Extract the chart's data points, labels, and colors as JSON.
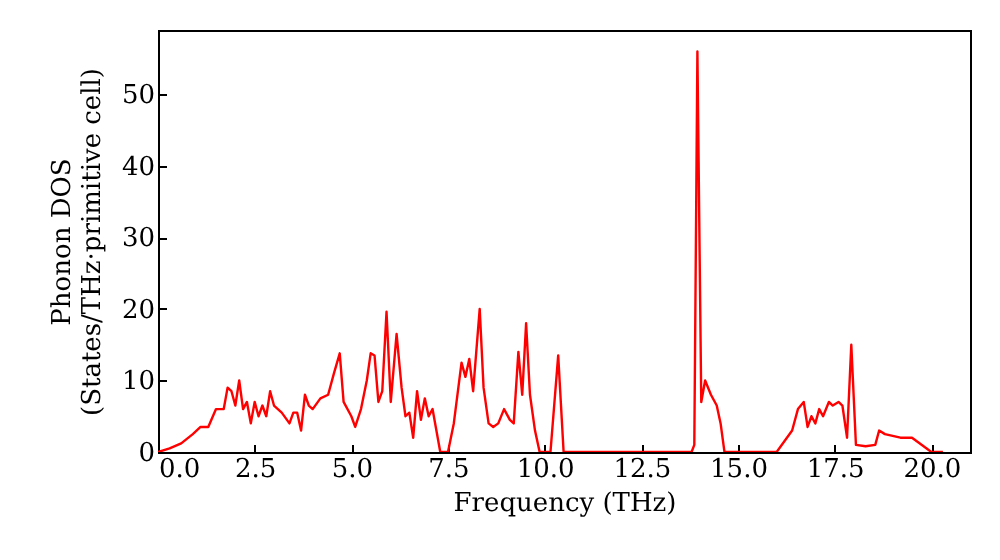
{
  "chart_data": {
    "type": "line",
    "xlabel": "Frequency (THz)",
    "ylabel": "Phonon DOS\n(States/THz·primitive cell)",
    "xlim": [
      0,
      21
    ],
    "ylim": [
      0,
      59
    ],
    "xticks": [
      {
        "value": 0,
        "label": "0.0"
      },
      {
        "value": 2.5,
        "label": "2.5"
      },
      {
        "value": 5,
        "label": "5.0"
      },
      {
        "value": 7.5,
        "label": "7.5"
      },
      {
        "value": 10,
        "label": "10.0"
      },
      {
        "value": 12.5,
        "label": "12.5"
      },
      {
        "value": 15,
        "label": "15.0"
      },
      {
        "value": 17.5,
        "label": "17.5"
      },
      {
        "value": 20,
        "label": "20.0"
      }
    ],
    "yticks": [
      0,
      10,
      20,
      30,
      40,
      50
    ],
    "series": [
      {
        "color": "#ff0000",
        "x": [
          0,
          0.3,
          0.6,
          0.9,
          1.1,
          1.3,
          1.5,
          1.7,
          1.8,
          1.9,
          2.0,
          2.1,
          2.2,
          2.3,
          2.4,
          2.5,
          2.6,
          2.7,
          2.8,
          2.9,
          3.0,
          3.1,
          3.2,
          3.4,
          3.5,
          3.6,
          3.7,
          3.8,
          3.9,
          4.0,
          4.2,
          4.4,
          4.55,
          4.7,
          4.8,
          5.0,
          5.1,
          5.25,
          5.4,
          5.5,
          5.6,
          5.7,
          5.8,
          5.91,
          6.02,
          6.17,
          6.3,
          6.4,
          6.5,
          6.6,
          6.7,
          6.8,
          6.9,
          7.0,
          7.1,
          7.2,
          7.3,
          7.5,
          7.65,
          7.85,
          7.95,
          8.05,
          8.15,
          8.32,
          8.42,
          8.55,
          8.67,
          8.8,
          8.95,
          9.1,
          9.2,
          9.32,
          9.42,
          9.52,
          9.62,
          9.75,
          9.87,
          10.15,
          10.35,
          10.49,
          13.8,
          13.87,
          13.95,
          14.05,
          14.15,
          14.3,
          14.45,
          14.55,
          14.65,
          16.0,
          16.4,
          16.55,
          16.7,
          16.8,
          16.9,
          17.0,
          17.1,
          17.2,
          17.35,
          17.45,
          17.6,
          17.7,
          17.82,
          17.93,
          18.05,
          18.3,
          18.55,
          18.65,
          18.8,
          19.2,
          19.5,
          19.8,
          20.0,
          20.3
        ],
        "values": [
          0,
          0.5,
          1.2,
          2.5,
          3.5,
          3.5,
          6,
          6,
          9,
          8.5,
          6.5,
          10,
          6,
          7,
          4,
          7,
          5,
          6.5,
          5,
          8.5,
          6.5,
          6,
          5.5,
          4,
          5.5,
          5.5,
          3,
          8,
          6.5,
          6,
          7.5,
          8,
          11,
          13.8,
          7,
          5,
          3.5,
          6,
          10,
          13.8,
          13.5,
          7,
          8.5,
          19.6,
          7,
          16.5,
          9,
          5,
          5.5,
          2,
          8.5,
          4.5,
          7.5,
          5,
          6,
          3,
          0,
          0,
          4,
          12.5,
          10.5,
          13,
          8.5,
          20,
          9,
          4,
          3.5,
          4,
          6,
          4.5,
          4,
          14,
          8,
          18,
          8,
          3,
          0,
          0,
          13.5,
          0,
          0,
          1,
          56,
          7,
          10,
          8,
          6.5,
          4,
          0,
          0,
          3,
          6,
          7,
          3.5,
          5,
          4,
          6,
          5,
          7,
          6.5,
          7,
          6.5,
          2,
          15,
          1,
          0.8,
          1,
          3,
          2.5,
          2,
          2,
          0.8,
          0,
          0
        ]
      }
    ]
  }
}
